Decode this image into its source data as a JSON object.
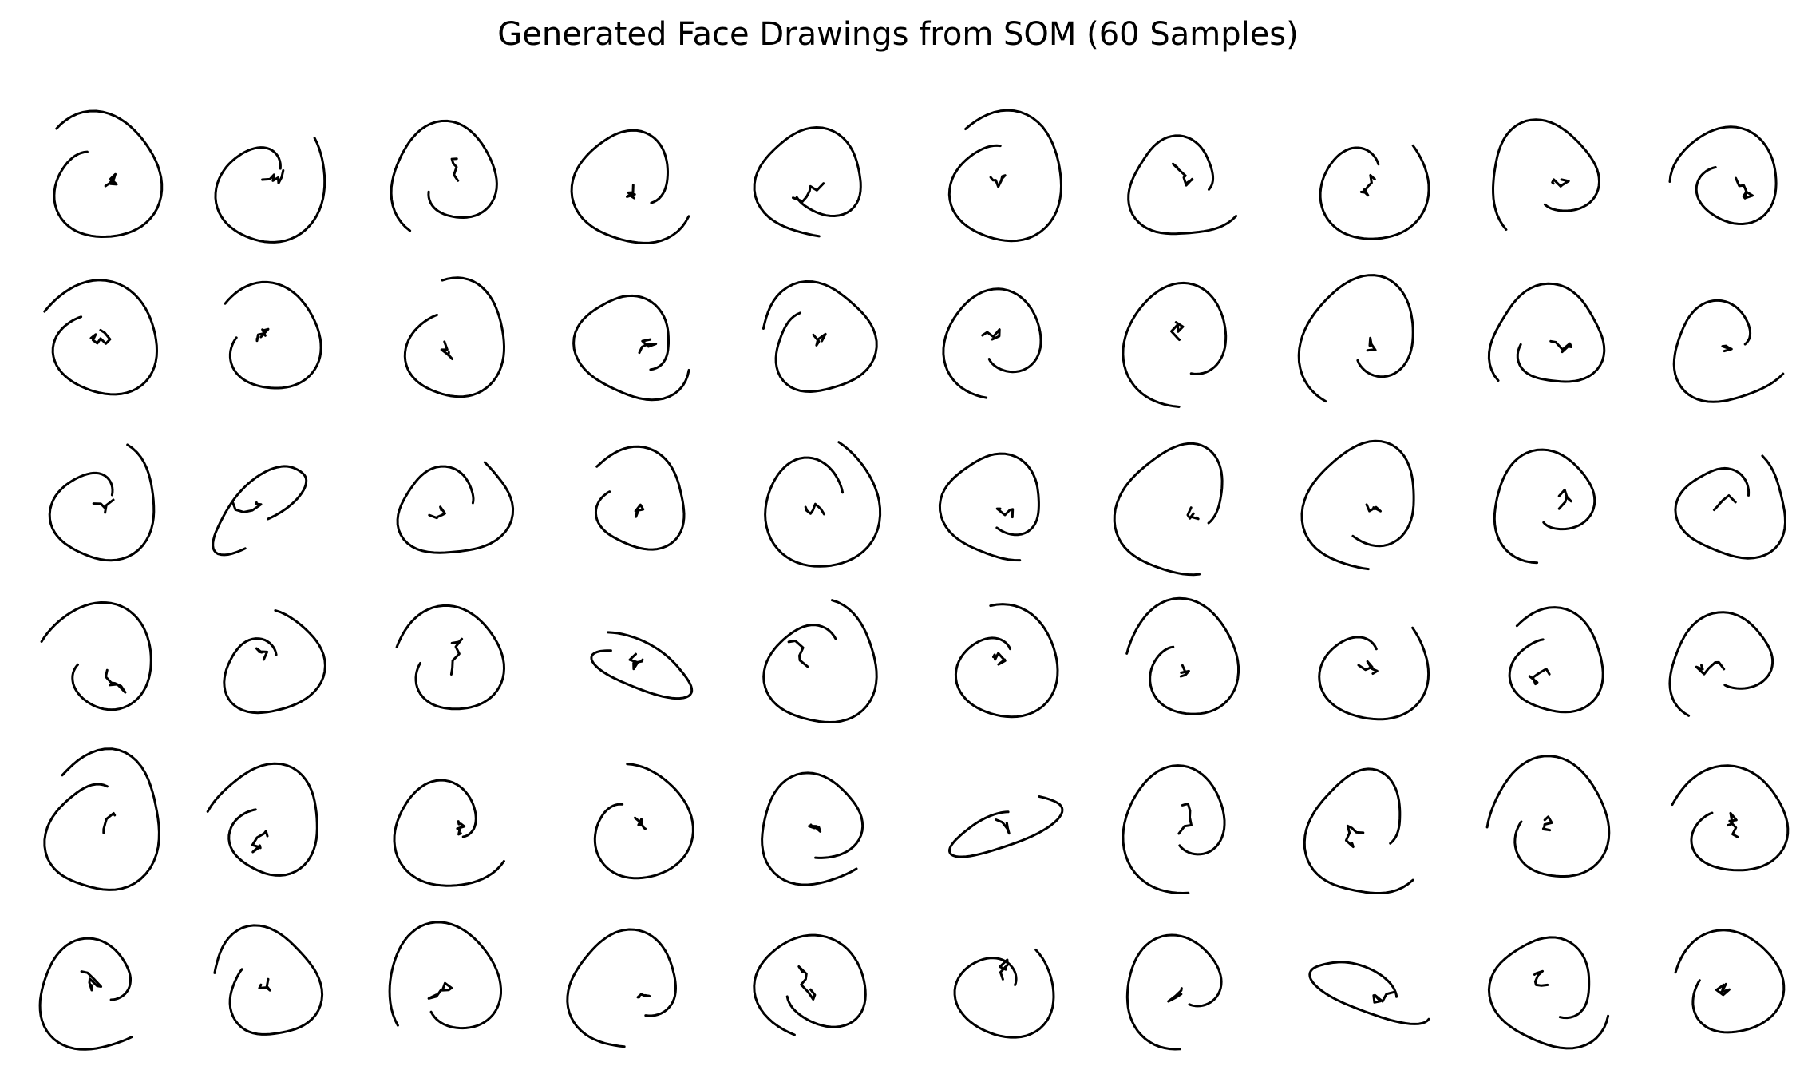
{
  "figure": {
    "title": "Generated Face Drawings from SOM (60 Samples)",
    "rows": 6,
    "columns": 10,
    "sample_count": 60,
    "stroke_color": "#000000",
    "background": "#ffffff"
  }
}
